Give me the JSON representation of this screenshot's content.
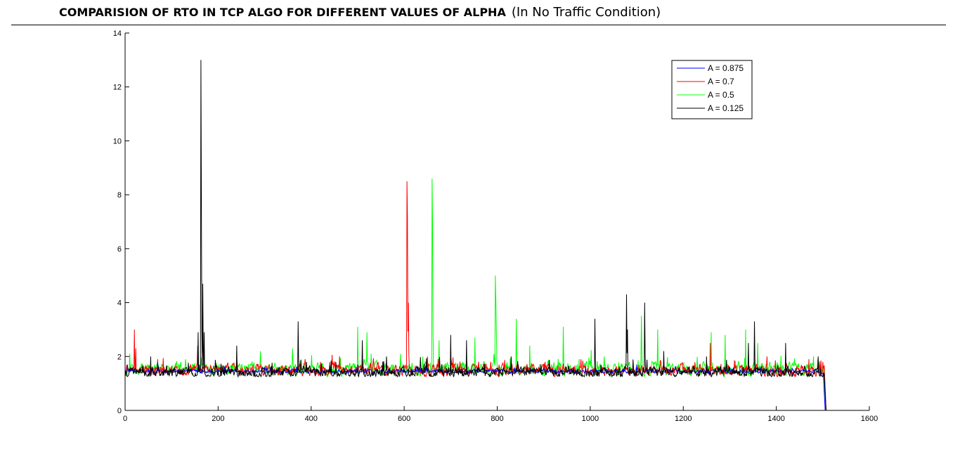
{
  "header": {
    "title": "COMPARISION OF RTO IN TCP ALGO FOR DIFFERENT VALUES OF ALPHA",
    "subtitle": "(In No Traffic Condition)"
  },
  "chart_data": {
    "type": "line",
    "title": "COMPARISION OF RTO IN TCP ALGO FOR DIFFERENT VALUES OF ALPHA",
    "subtitle": "(In No Traffic Condition)",
    "xlabel": "",
    "ylabel": "",
    "xlim": [
      0,
      1600
    ],
    "ylim": [
      0,
      14
    ],
    "x_ticks": [
      "0",
      "200",
      "400",
      "600",
      "800",
      "1000",
      "1200",
      "1400",
      "1600"
    ],
    "y_ticks": [
      "0",
      "2",
      "4",
      "6",
      "8",
      "10",
      "12",
      "14"
    ],
    "grid": false,
    "legend_position": "top-right",
    "n_points": 1508,
    "series": [
      {
        "name": "A = 0.875",
        "color": "#0000ff",
        "baseline": 1.45,
        "jitter": 0.1,
        "end_drop_x": 1505,
        "peaks": [
          [
            5,
            1.7
          ],
          [
            70,
            1.8
          ],
          [
            160,
            1.7
          ],
          [
            300,
            1.6
          ],
          [
            500,
            1.7
          ],
          [
            700,
            1.6
          ],
          [
            900,
            1.6
          ],
          [
            1100,
            1.7
          ],
          [
            1300,
            1.6
          ],
          [
            1490,
            1.5
          ]
        ]
      },
      {
        "name": "A = 0.7",
        "color": "#ff0000",
        "baseline": 1.5,
        "jitter": 0.3,
        "end_drop_x": 1507,
        "peaks": [
          [
            20,
            3.0
          ],
          [
            23,
            2.3
          ],
          [
            70,
            1.9
          ],
          [
            156,
            2.4
          ],
          [
            240,
            1.9
          ],
          [
            420,
            1.8
          ],
          [
            510,
            1.9
          ],
          [
            606,
            8.5
          ],
          [
            607,
            7.2
          ],
          [
            609,
            4.0
          ],
          [
            650,
            2.0
          ],
          [
            760,
            1.8
          ],
          [
            980,
            1.9
          ],
          [
            1150,
            1.8
          ],
          [
            1258,
            2.5
          ],
          [
            1380,
            2.0
          ],
          [
            1470,
            1.9
          ],
          [
            1500,
            1.8
          ]
        ]
      },
      {
        "name": "A = 0.5",
        "color": "#00ff00",
        "baseline": 1.55,
        "jitter": 0.35,
        "end_drop_x": 1506,
        "peaks": [
          [
            10,
            2.1
          ],
          [
            130,
            1.9
          ],
          [
            360,
            2.3
          ],
          [
            500,
            3.1
          ],
          [
            520,
            2.9
          ],
          [
            640,
            2.0
          ],
          [
            660,
            8.6
          ],
          [
            661,
            7.0
          ],
          [
            675,
            2.6
          ],
          [
            752,
            2.7
          ],
          [
            796,
            5.0
          ],
          [
            797,
            4.2
          ],
          [
            798,
            3.2
          ],
          [
            841,
            3.4
          ],
          [
            870,
            2.4
          ],
          [
            942,
            3.1
          ],
          [
            1030,
            2.0
          ],
          [
            1110,
            3.5
          ],
          [
            1145,
            3.0
          ],
          [
            1260,
            2.9
          ],
          [
            1290,
            2.8
          ],
          [
            1334,
            3.0
          ],
          [
            1360,
            2.5
          ],
          [
            1420,
            2.0
          ],
          [
            1480,
            2.0
          ]
        ]
      },
      {
        "name": "A = 0.125",
        "color": "#000000",
        "baseline": 1.4,
        "jitter": 0.3,
        "end_drop_x": 1507,
        "peaks": [
          [
            55,
            2.0
          ],
          [
            157,
            2.9
          ],
          [
            163,
            13.0
          ],
          [
            164,
            7.8
          ],
          [
            167,
            4.7
          ],
          [
            170,
            2.9
          ],
          [
            240,
            2.4
          ],
          [
            372,
            3.3
          ],
          [
            510,
            2.6
          ],
          [
            562,
            2.0
          ],
          [
            700,
            2.8
          ],
          [
            734,
            2.6
          ],
          [
            830,
            2.0
          ],
          [
            1010,
            3.4
          ],
          [
            1078,
            4.3
          ],
          [
            1080,
            3.0
          ],
          [
            1117,
            4.0
          ],
          [
            1158,
            2.2
          ],
          [
            1250,
            2.0
          ],
          [
            1340,
            2.5
          ],
          [
            1353,
            3.3
          ],
          [
            1420,
            2.5
          ],
          [
            1490,
            2.0
          ]
        ]
      }
    ]
  }
}
